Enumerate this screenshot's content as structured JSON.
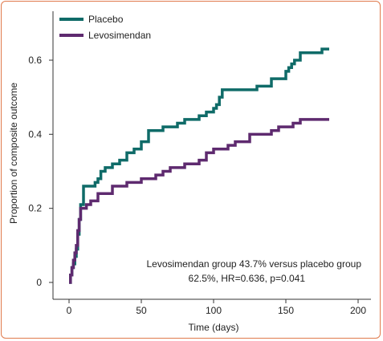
{
  "chart_data": {
    "type": "line",
    "step": true,
    "xlabel": "Time (days)",
    "ylabel": "Proportion of composite outcome",
    "xlim": [
      0,
      200
    ],
    "ylim": [
      0,
      0.7
    ],
    "xticks": [
      "0",
      "50",
      "100",
      "150",
      "200"
    ],
    "xtick_values": [
      0,
      50,
      100,
      150,
      200
    ],
    "yticks": [
      "0",
      "0.2",
      "0.4",
      "0.6"
    ],
    "ytick_values": [
      0,
      0.2,
      0.4,
      0.6
    ],
    "grid": false,
    "legend_position": "top-left",
    "annotation_lines": [
      "Levosimendan group 43.7% versus placebo group",
      "62.5%, HR=0.636, p=0.041"
    ],
    "series": [
      {
        "name": "Placebo",
        "color": "#0f6b68",
        "x": [
          0,
          1,
          2,
          3,
          4,
          5,
          6,
          7,
          8,
          10,
          12,
          18,
          20,
          22,
          25,
          30,
          35,
          40,
          45,
          50,
          55,
          60,
          65,
          70,
          75,
          80,
          85,
          90,
          95,
          100,
          102,
          104,
          106,
          120,
          130,
          140,
          150,
          152,
          154,
          156,
          160,
          170,
          175,
          180
        ],
        "y": [
          0,
          0.02,
          0.04,
          0.05,
          0.07,
          0.09,
          0.13,
          0.17,
          0.21,
          0.26,
          0.26,
          0.27,
          0.28,
          0.3,
          0.31,
          0.32,
          0.33,
          0.35,
          0.36,
          0.38,
          0.41,
          0.41,
          0.42,
          0.42,
          0.43,
          0.44,
          0.44,
          0.45,
          0.46,
          0.47,
          0.48,
          0.5,
          0.52,
          0.52,
          0.53,
          0.55,
          0.57,
          0.58,
          0.59,
          0.6,
          0.62,
          0.62,
          0.63,
          0.63
        ]
      },
      {
        "name": "Levosimendan",
        "color": "#5e2a6f",
        "x": [
          0,
          1,
          2,
          3,
          4,
          5,
          6,
          7,
          8,
          10,
          12,
          15,
          20,
          30,
          35,
          40,
          45,
          50,
          55,
          60,
          65,
          70,
          75,
          80,
          85,
          90,
          95,
          100,
          105,
          110,
          115,
          120,
          125,
          130,
          135,
          140,
          145,
          150,
          155,
          160,
          170,
          180
        ],
        "y": [
          0,
          0.02,
          0.04,
          0.06,
          0.08,
          0.1,
          0.14,
          0.17,
          0.2,
          0.2,
          0.21,
          0.22,
          0.24,
          0.26,
          0.26,
          0.27,
          0.27,
          0.28,
          0.28,
          0.29,
          0.3,
          0.31,
          0.31,
          0.32,
          0.32,
          0.33,
          0.35,
          0.36,
          0.36,
          0.37,
          0.38,
          0.38,
          0.4,
          0.4,
          0.4,
          0.41,
          0.42,
          0.42,
          0.43,
          0.44,
          0.44,
          0.44
        ]
      }
    ]
  }
}
